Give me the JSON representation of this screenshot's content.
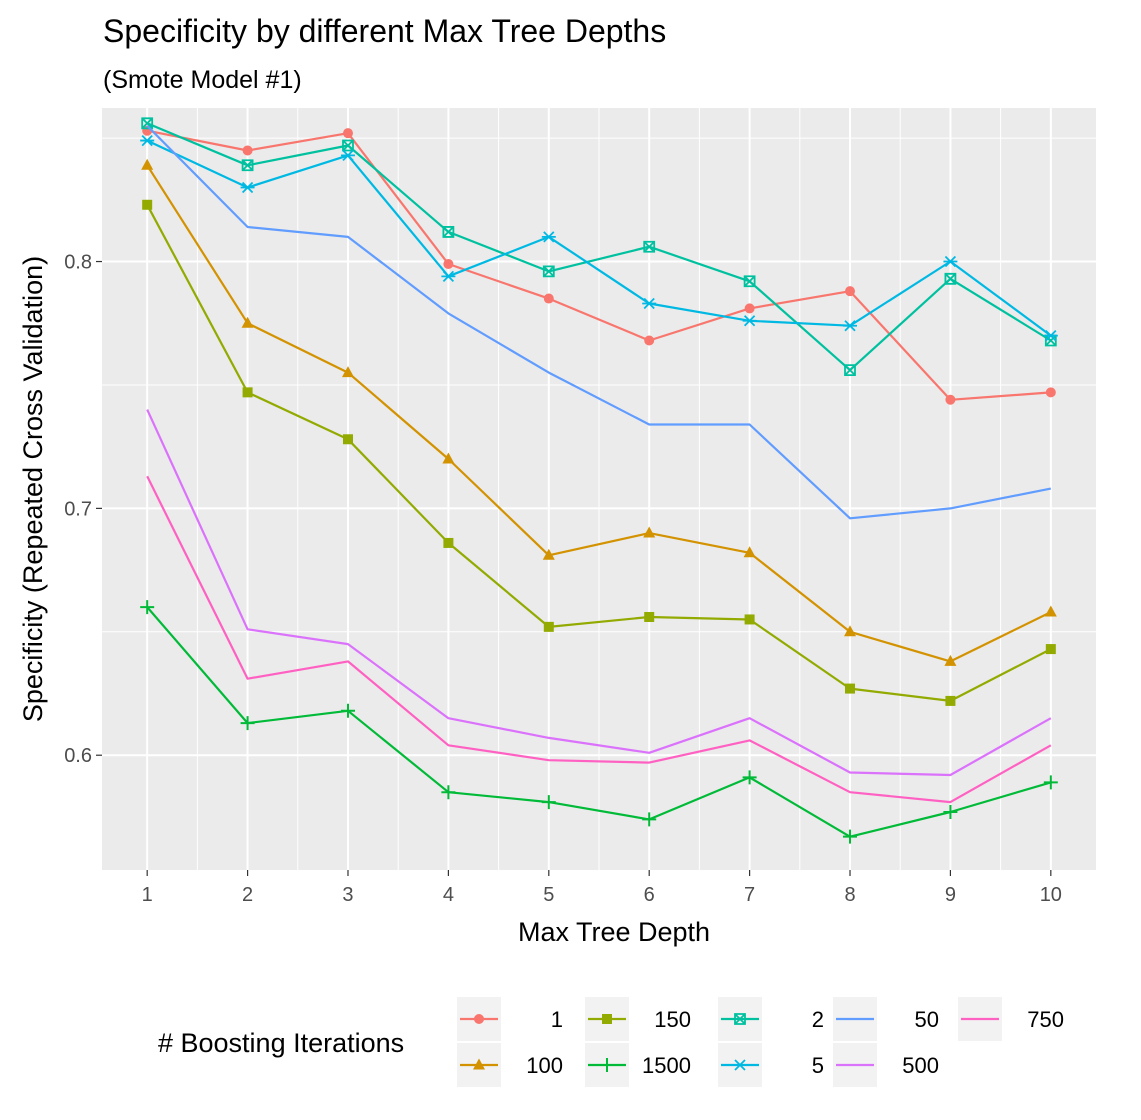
{
  "chart_data": {
    "type": "line",
    "title": "Specificity by different Max Tree Depths",
    "subtitle": "(Smote Model #1)",
    "xlabel": "Max Tree Depth",
    "ylabel": "Specificity (Repeated Cross Validation)",
    "x": [
      1,
      2,
      3,
      4,
      5,
      6,
      7,
      8,
      9,
      10
    ],
    "x_ticks": [
      "1",
      "2",
      "3",
      "4",
      "5",
      "6",
      "7",
      "8",
      "9",
      "10"
    ],
    "y_ticks": [
      "0.6",
      "0.7",
      "0.8"
    ],
    "y_tick_values": [
      0.6,
      0.7,
      0.8
    ],
    "xlim": [
      0.55,
      10.45
    ],
    "ylim": [
      0.5535,
      0.8622
    ],
    "grid": true,
    "legend_title": "# Boosting Iterations",
    "legend_position": "bottom",
    "series": [
      {
        "name": "1",
        "color": "#F8766D",
        "marker": "circle",
        "values": [
          0.853,
          0.845,
          0.852,
          0.799,
          0.785,
          0.768,
          0.781,
          0.788,
          0.744,
          0.747
        ]
      },
      {
        "name": "100",
        "color": "#D39200",
        "marker": "triangle",
        "values": [
          0.839,
          0.775,
          0.755,
          0.72,
          0.681,
          0.69,
          0.682,
          0.65,
          0.638,
          0.658
        ]
      },
      {
        "name": "150",
        "color": "#93AA00",
        "marker": "square",
        "values": [
          0.823,
          0.747,
          0.728,
          0.686,
          0.652,
          0.656,
          0.655,
          0.627,
          0.622,
          0.643
        ]
      },
      {
        "name": "1500",
        "color": "#00BA38",
        "marker": "plus",
        "values": [
          0.66,
          0.613,
          0.618,
          0.585,
          0.581,
          0.574,
          0.591,
          0.567,
          0.577,
          0.589
        ]
      },
      {
        "name": "2",
        "color": "#00C19F",
        "marker": "square-x",
        "values": [
          0.856,
          0.839,
          0.847,
          0.812,
          0.796,
          0.806,
          0.792,
          0.756,
          0.793,
          0.768
        ]
      },
      {
        "name": "5",
        "color": "#00B9E3",
        "marker": "asterisk",
        "values": [
          0.849,
          0.83,
          0.843,
          0.794,
          0.81,
          0.783,
          0.776,
          0.774,
          0.8,
          0.77
        ]
      },
      {
        "name": "50",
        "color": "#619CFF",
        "marker": "none",
        "values": [
          0.855,
          0.814,
          0.81,
          0.779,
          0.755,
          0.734,
          0.734,
          0.696,
          0.7,
          0.708
        ]
      },
      {
        "name": "500",
        "color": "#DB72FB",
        "marker": "none",
        "values": [
          0.74,
          0.651,
          0.645,
          0.615,
          0.607,
          0.601,
          0.615,
          0.593,
          0.592,
          0.615
        ]
      },
      {
        "name": "750",
        "color": "#FF61C3",
        "marker": "none",
        "values": [
          0.713,
          0.631,
          0.638,
          0.604,
          0.598,
          0.597,
          0.606,
          0.585,
          0.581,
          0.604
        ]
      }
    ]
  }
}
